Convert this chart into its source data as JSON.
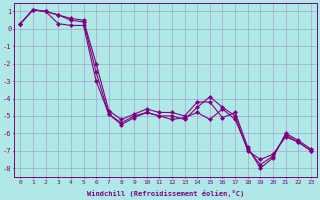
{
  "xlabel": "Windchill (Refroidissement éolien,°C)",
  "ylabel": "",
  "bg_color": "#b0e8e8",
  "line_color": "#800080",
  "grid_color": "#a0a0c8",
  "xlim": [
    -0.5,
    23.5
  ],
  "ylim": [
    -8.5,
    1.5
  ],
  "xticks": [
    0,
    1,
    2,
    3,
    4,
    5,
    6,
    7,
    8,
    9,
    10,
    11,
    12,
    13,
    14,
    15,
    16,
    17,
    18,
    19,
    20,
    21,
    22,
    23
  ],
  "yticks": [
    1,
    0,
    -1,
    -2,
    -3,
    -4,
    -5,
    -6,
    -7,
    -8
  ],
  "series1": [
    0.3,
    1.1,
    1.0,
    0.3,
    0.2,
    0.2,
    -3.0,
    -4.9,
    -5.5,
    -5.1,
    -4.8,
    -5.0,
    -5.2,
    -5.1,
    -4.8,
    -5.2,
    -4.6,
    -5.2,
    -6.9,
    -7.8,
    -7.3,
    -6.1,
    -6.5,
    -7.0
  ],
  "series2": [
    0.3,
    1.1,
    1.0,
    0.8,
    0.5,
    0.4,
    -2.5,
    -4.9,
    -5.4,
    -5.0,
    -4.8,
    -5.0,
    -5.0,
    -5.2,
    -4.5,
    -3.9,
    -4.5,
    -5.0,
    -7.0,
    -7.5,
    -7.2,
    -6.2,
    -6.5,
    -7.0
  ],
  "series3": [
    0.3,
    1.1,
    1.0,
    0.8,
    0.6,
    0.5,
    -2.0,
    -4.7,
    -5.2,
    -4.9,
    -4.6,
    -4.8,
    -4.8,
    -5.0,
    -4.2,
    -4.2,
    -5.1,
    -4.8,
    -6.8,
    -8.0,
    -7.4,
    -6.0,
    -6.4,
    -6.9
  ]
}
